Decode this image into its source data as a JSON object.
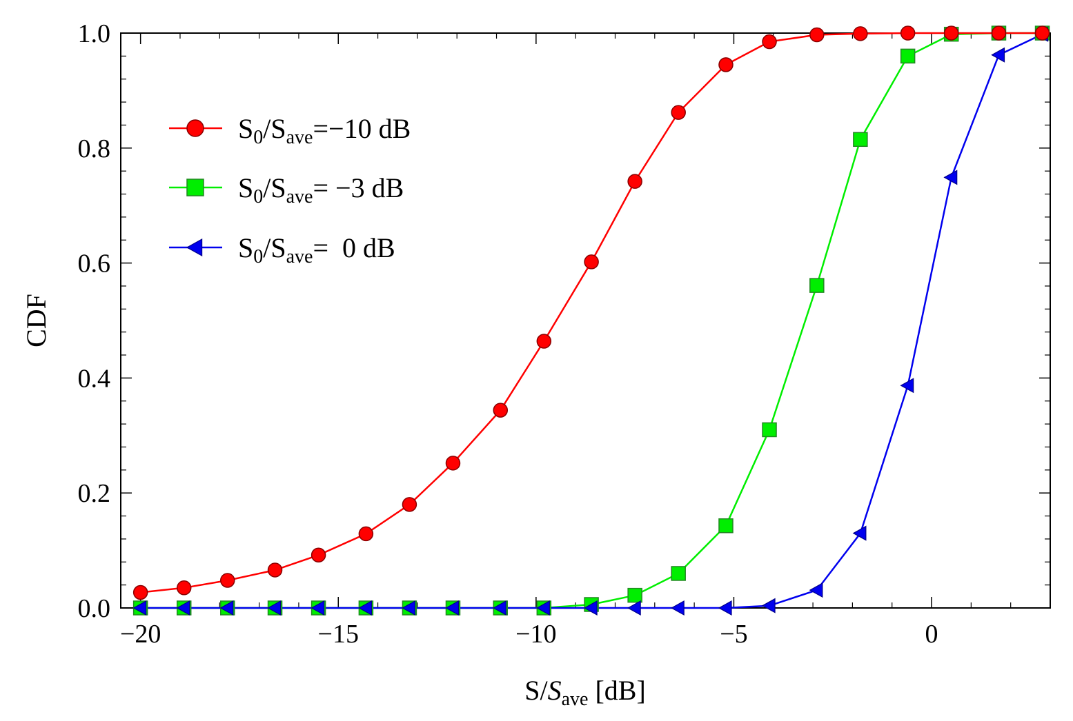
{
  "chart_data": {
    "type": "line",
    "title": "",
    "xlabel": {
      "main": "S/",
      "italic": "S",
      "sub": "ave",
      "unit": " [dB]"
    },
    "ylabel": "CDF",
    "xlim": [
      -20.5,
      3.0
    ],
    "ylim": [
      0.0,
      1.0
    ],
    "xticks": [
      -20,
      -15,
      -10,
      -5,
      0
    ],
    "xtick_labels": [
      "−20",
      "−15",
      "−10",
      "−5",
      "0"
    ],
    "yticks": [
      0.0,
      0.2,
      0.4,
      0.6,
      0.8,
      1.0
    ],
    "ytick_labels": [
      "0.0",
      "0.2",
      "0.4",
      "0.6",
      "0.8",
      "1.0"
    ],
    "grid": false,
    "legend_position": "upper-left",
    "series": [
      {
        "name": "S0/Save=−10 dB",
        "legend": {
          "a": "S",
          "a_sub": "0",
          "b": "/S",
          "b_sub": "ave",
          "c": "=−10 dB"
        },
        "color": "#ff0000",
        "marker": "circle",
        "x": [
          -20.0,
          -18.9,
          -17.8,
          -16.6,
          -15.5,
          -14.3,
          -13.2,
          -12.1,
          -10.9,
          -9.8,
          -8.6,
          -7.5,
          -6.4,
          -5.2,
          -4.1,
          -2.9,
          -1.8,
          -0.6,
          0.5,
          1.7,
          2.8
        ],
        "y": [
          0.027,
          0.035,
          0.048,
          0.066,
          0.092,
          0.129,
          0.18,
          0.252,
          0.344,
          0.464,
          0.602,
          0.742,
          0.862,
          0.945,
          0.985,
          0.997,
          0.999,
          1.0,
          1.0,
          1.0,
          1.0
        ]
      },
      {
        "name": "S0/Save= −3 dB",
        "legend": {
          "a": "S",
          "a_sub": "0",
          "b": "/S",
          "b_sub": "ave",
          "c": "= −3 dB"
        },
        "color": "#00ee00",
        "marker": "square",
        "x": [
          -20.0,
          -18.9,
          -17.8,
          -16.6,
          -15.5,
          -14.3,
          -13.2,
          -12.1,
          -10.9,
          -9.8,
          -8.6,
          -7.5,
          -6.4,
          -5.2,
          -4.1,
          -2.9,
          -1.8,
          -0.6,
          0.5,
          1.7,
          2.8
        ],
        "y": [
          0.0,
          0.0,
          0.0,
          0.0,
          0.0,
          0.0,
          0.0,
          0.0,
          0.0,
          0.0,
          0.006,
          0.022,
          0.06,
          0.143,
          0.31,
          0.561,
          0.815,
          0.96,
          0.998,
          1.0,
          1.0
        ]
      },
      {
        "name": "S0/Save=  0 dB",
        "legend": {
          "a": "S",
          "a_sub": "0",
          "b": "/S",
          "b_sub": "ave",
          "c": "=  0 dB"
        },
        "color": "#0000ee",
        "marker": "triangle-left",
        "x": [
          -20.0,
          -18.9,
          -17.8,
          -16.6,
          -15.5,
          -14.3,
          -13.2,
          -12.1,
          -10.9,
          -9.8,
          -8.6,
          -7.5,
          -6.4,
          -5.2,
          -4.1,
          -2.9,
          -1.8,
          -0.6,
          0.5,
          1.7,
          2.8
        ],
        "y": [
          0.0,
          0.0,
          0.0,
          0.0,
          0.0,
          0.0,
          0.0,
          0.0,
          0.0,
          0.0,
          0.0,
          0.0,
          0.0,
          0.0,
          0.004,
          0.031,
          0.13,
          0.387,
          0.749,
          0.962,
          0.998
        ]
      }
    ]
  }
}
